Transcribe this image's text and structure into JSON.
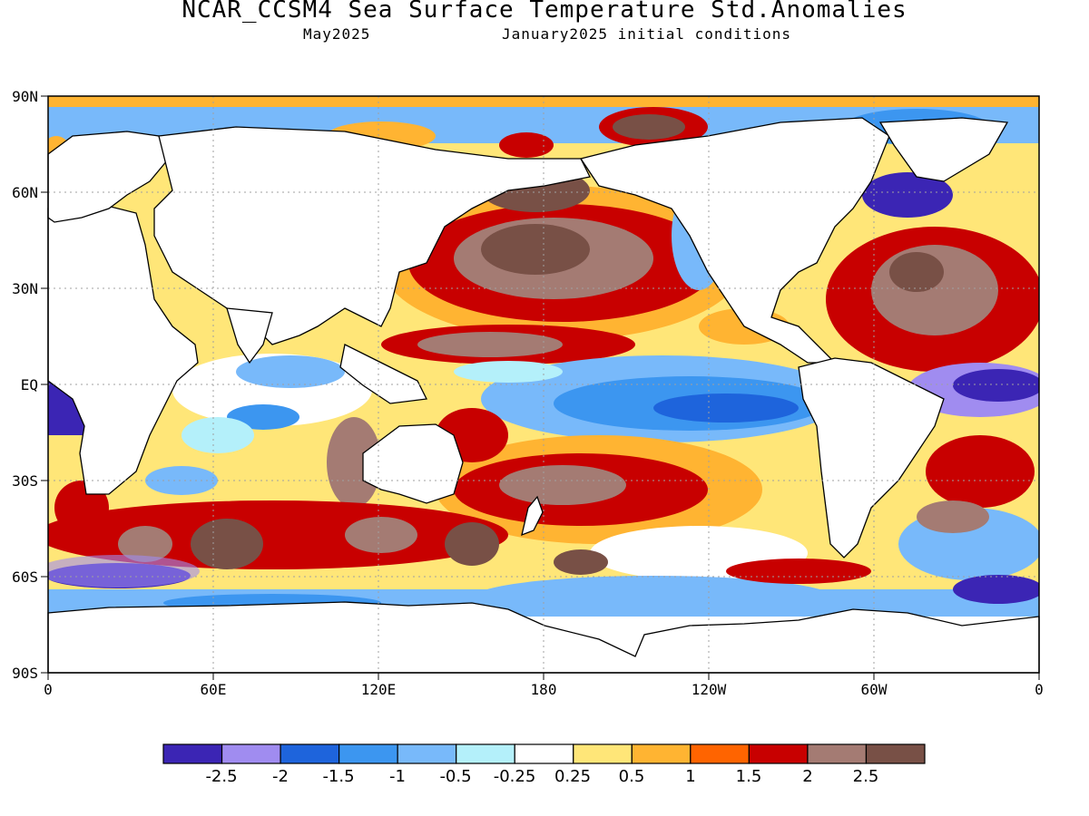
{
  "title": "NCAR_CCSM4 Sea Surface Temperature Std.Anomalies",
  "subtitle_left": "May2025",
  "subtitle_right": "January2025 initial conditions",
  "y_tick_labels": [
    "90N",
    "60N",
    "30N",
    "EQ",
    "30S",
    "60S",
    "90S"
  ],
  "x_tick_labels": [
    "0",
    "60E",
    "120E",
    "180",
    "120W",
    "60W",
    "0"
  ],
  "colorbar": {
    "colors": [
      "#3b25b4",
      "#a08cf0",
      "#1e64dc",
      "#3c96f0",
      "#78b9fa",
      "#b4f0fa",
      "#ffffff",
      "#ffe678",
      "#ffb432",
      "#ff6400",
      "#c80000",
      "#a47b73",
      "#785046"
    ],
    "labels": [
      "-2.5",
      "-2",
      "-1.5",
      "-1",
      "-0.5",
      "-0.25",
      "0.25",
      "0.5",
      "1",
      "1.5",
      "2",
      "2.5"
    ]
  },
  "map_colors": {
    "land": "#ffffff",
    "coast": "#000000",
    "grid": "#a0a0a0"
  }
}
